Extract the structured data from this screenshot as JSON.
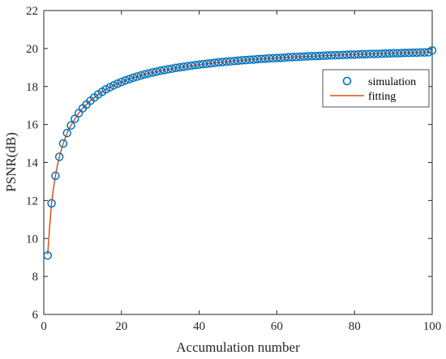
{
  "chart_data": {
    "type": "line",
    "xlabel": "Accumulation number",
    "ylabel": "PSNR(dB)",
    "xlim": [
      0,
      100
    ],
    "ylim": [
      6,
      22
    ],
    "xticks": [
      0,
      20,
      40,
      60,
      80,
      100
    ],
    "yticks": [
      6,
      8,
      10,
      12,
      14,
      16,
      18,
      20,
      22
    ],
    "grid": false,
    "legend_position": "top-right",
    "series": [
      {
        "name": "simulation",
        "marker": "circle",
        "color": "#0072BD",
        "x": [
          1,
          2,
          3,
          4,
          5,
          6,
          7,
          8,
          9,
          10,
          11,
          12,
          13,
          14,
          15,
          16,
          17,
          18,
          19,
          20,
          21,
          22,
          23,
          24,
          25,
          26,
          27,
          28,
          29,
          30,
          31,
          32,
          33,
          34,
          35,
          36,
          37,
          38,
          39,
          40,
          41,
          42,
          43,
          44,
          45,
          46,
          47,
          48,
          49,
          50,
          51,
          52,
          53,
          54,
          55,
          56,
          57,
          58,
          59,
          60,
          61,
          62,
          63,
          64,
          65,
          66,
          67,
          68,
          69,
          70,
          71,
          72,
          73,
          74,
          75,
          76,
          77,
          78,
          79,
          80,
          81,
          82,
          83,
          84,
          85,
          86,
          87,
          88,
          89,
          90,
          91,
          92,
          93,
          94,
          95,
          96,
          97,
          98,
          99,
          100
        ],
        "values": [
          9.1,
          11.85,
          13.3,
          14.3,
          15.0,
          15.55,
          15.95,
          16.3,
          16.6,
          16.85,
          17.05,
          17.25,
          17.42,
          17.58,
          17.72,
          17.85,
          17.96,
          18.06,
          18.15,
          18.24,
          18.32,
          18.39,
          18.46,
          18.52,
          18.58,
          18.64,
          18.69,
          18.74,
          18.78,
          18.83,
          18.87,
          18.91,
          18.94,
          18.98,
          19.01,
          19.04,
          19.07,
          19.1,
          19.13,
          19.15,
          19.18,
          19.2,
          19.22,
          19.25,
          19.27,
          19.29,
          19.31,
          19.32,
          19.34,
          19.36,
          19.38,
          19.39,
          19.41,
          19.42,
          19.44,
          19.45,
          19.46,
          19.48,
          19.49,
          19.5,
          19.51,
          19.52,
          19.54,
          19.55,
          19.56,
          19.57,
          19.58,
          19.59,
          19.6,
          19.6,
          19.61,
          19.62,
          19.63,
          19.64,
          19.65,
          19.65,
          19.66,
          19.67,
          19.68,
          19.68,
          19.69,
          19.7,
          19.7,
          19.71,
          19.72,
          19.72,
          19.73,
          19.74,
          19.74,
          19.75,
          19.75,
          19.76,
          19.77,
          19.77,
          19.78,
          19.78,
          19.79,
          19.79,
          19.8,
          19.9
        ]
      },
      {
        "name": "fitting",
        "marker": "none",
        "color": "#D95319",
        "x": [
          1,
          1.5,
          2,
          2.5,
          3,
          3.5,
          4,
          5,
          6,
          7,
          8,
          9,
          10,
          12,
          14,
          16,
          18,
          20,
          23,
          26,
          30,
          35,
          40,
          45,
          50,
          55,
          60,
          65,
          70,
          75,
          80,
          85,
          90,
          95,
          100
        ],
        "values": [
          9.15,
          10.6,
          11.85,
          12.65,
          13.3,
          13.85,
          14.3,
          15.0,
          15.55,
          15.95,
          16.3,
          16.6,
          16.85,
          17.25,
          17.58,
          17.85,
          18.06,
          18.24,
          18.46,
          18.64,
          18.83,
          19.01,
          19.15,
          19.27,
          19.36,
          19.44,
          19.5,
          19.56,
          19.6,
          19.65,
          19.68,
          19.72,
          19.75,
          19.78,
          19.82
        ]
      }
    ]
  }
}
